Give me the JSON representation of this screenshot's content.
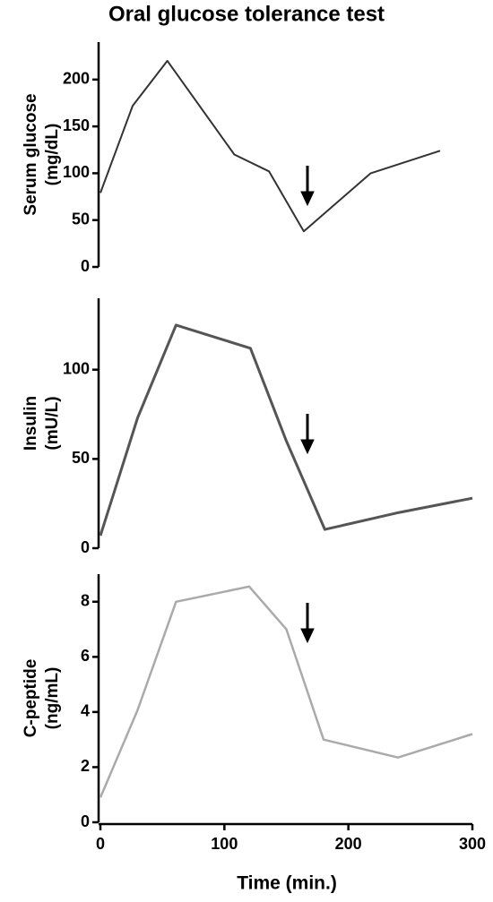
{
  "chart_data": [
    {
      "type": "line",
      "title": "Oral glucose tolerance test",
      "y_label": [
        "Serum glucose",
        "(mg/dL)"
      ],
      "x": [
        0,
        26,
        54,
        108,
        136,
        164,
        218,
        274
      ],
      "values": [
        79,
        172,
        220,
        120,
        102,
        38,
        100,
        124
      ],
      "color": "#333333",
      "xlim": [
        0,
        300
      ],
      "ylim": [
        0,
        240
      ],
      "yticks": [
        0,
        50,
        100,
        150,
        200
      ]
    },
    {
      "type": "line",
      "y_label": [
        "Insulin",
        "(mU/L)"
      ],
      "x": [
        0,
        30,
        61,
        121,
        150,
        181,
        241,
        300
      ],
      "values": [
        7,
        73,
        125,
        112,
        60,
        10.5,
        20,
        28
      ],
      "color": "#555555",
      "xlim": [
        0,
        300
      ],
      "ylim": [
        0,
        140
      ],
      "yticks": [
        0,
        50,
        100
      ]
    },
    {
      "type": "line",
      "y_label": [
        "C-peptide",
        "(ng/mL)"
      ],
      "x": [
        0,
        30,
        61,
        120,
        150,
        180,
        240,
        300
      ],
      "values": [
        0.9,
        4.07,
        8,
        8.55,
        7.0,
        3.0,
        2.35,
        3.2
      ],
      "color": "#aaaaaa",
      "xlim": [
        0,
        300
      ],
      "ylim": [
        0,
        9
      ],
      "yticks": [
        0,
        2,
        4,
        6,
        8
      ],
      "xticks": [
        0,
        100,
        200,
        300
      ],
      "x_label": "Time (min.)"
    }
  ]
}
